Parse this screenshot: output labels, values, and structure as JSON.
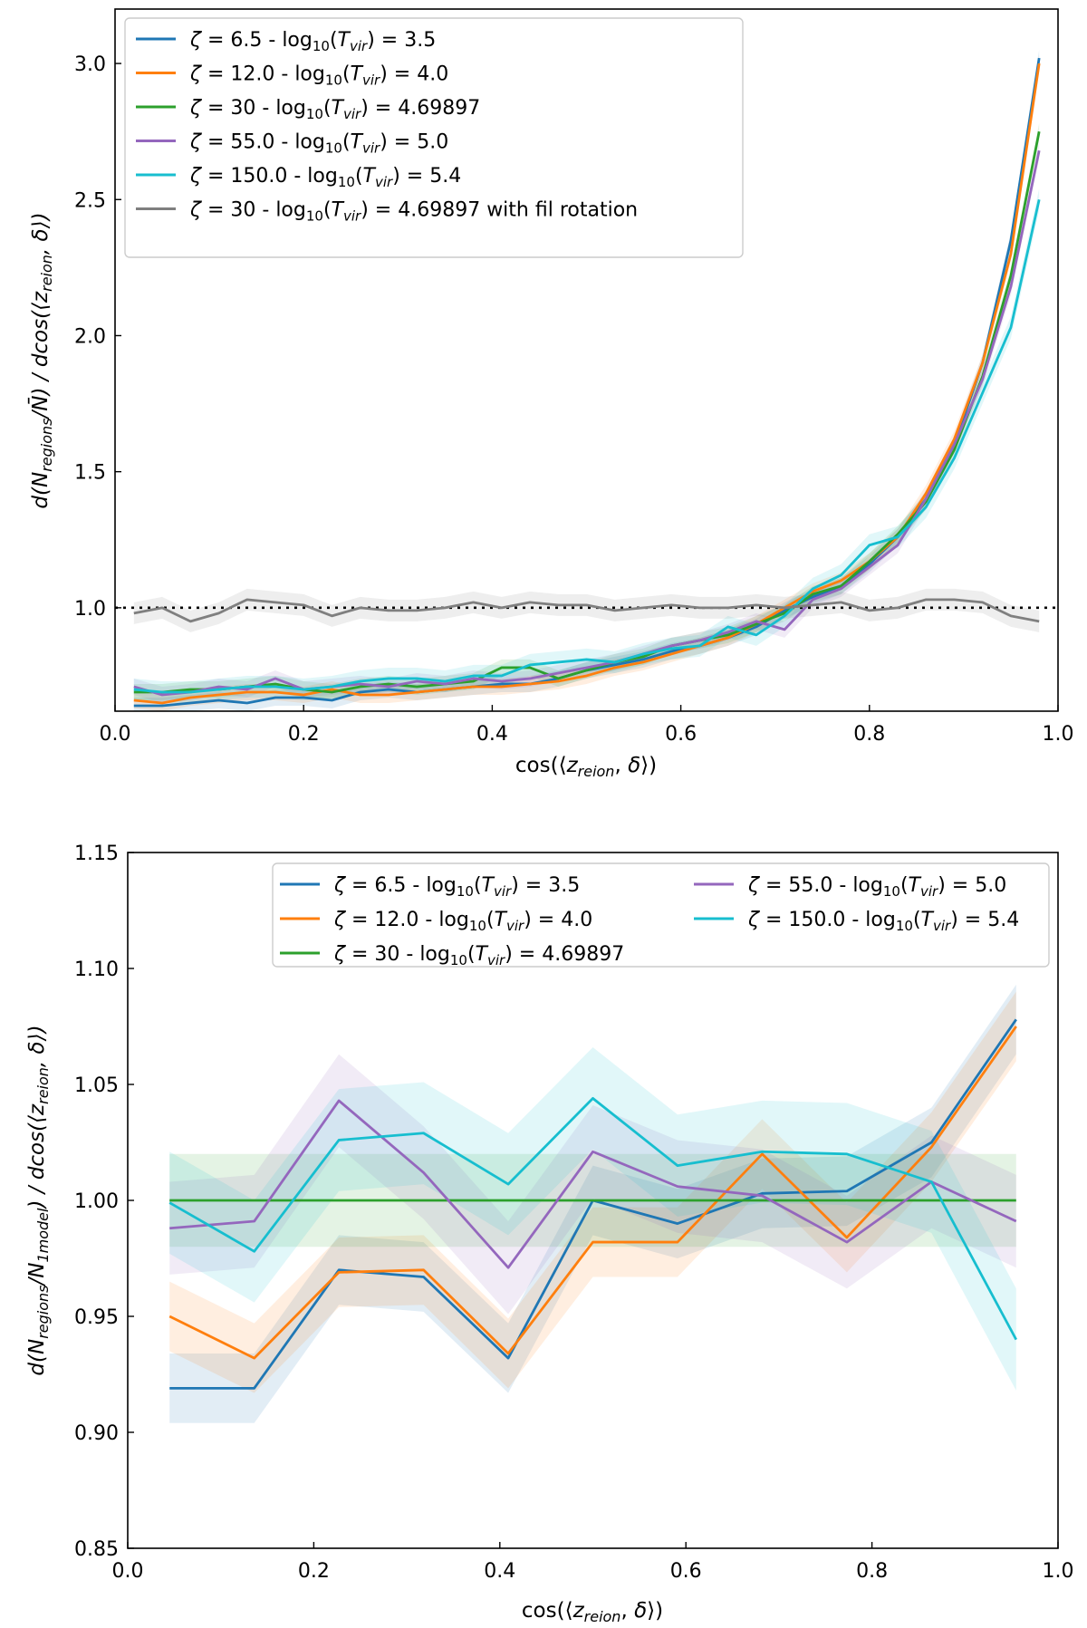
{
  "chart_data": [
    {
      "type": "line",
      "xlabel": "cos(⟨z_reion, δ⟩)",
      "ylabel": "d(N_regions/N̄) / dcos(⟨z_reion, δ⟩)",
      "xlim": [
        0.0,
        1.0
      ],
      "ylim": [
        0.62,
        3.2
      ],
      "xticks": [
        0.0,
        0.2,
        0.4,
        0.6,
        0.8,
        1.0
      ],
      "xtick_labels": [
        "0.0",
        "0.2",
        "0.4",
        "0.6",
        "0.8",
        "1.0"
      ],
      "yticks": [
        1.0,
        1.5,
        2.0,
        2.5,
        3.0
      ],
      "ytick_labels": [
        "1.0",
        "1.5",
        "2.0",
        "2.5",
        "3.0"
      ],
      "reference_line": 1.0,
      "legend_position": "top-left",
      "x": [
        0.02,
        0.05,
        0.08,
        0.11,
        0.14,
        0.17,
        0.2,
        0.23,
        0.26,
        0.29,
        0.32,
        0.35,
        0.38,
        0.41,
        0.44,
        0.47,
        0.5,
        0.53,
        0.56,
        0.59,
        0.62,
        0.65,
        0.68,
        0.71,
        0.74,
        0.77,
        0.8,
        0.83,
        0.86,
        0.89,
        0.92,
        0.95,
        0.98
      ],
      "series": [
        {
          "name": "ζ = 6.5 - log10(Tvir) = 3.5",
          "color": "#1f77b4",
          "band": 0.03,
          "values": [
            0.64,
            0.64,
            0.65,
            0.66,
            0.65,
            0.67,
            0.67,
            0.66,
            0.69,
            0.7,
            0.69,
            0.7,
            0.71,
            0.72,
            0.72,
            0.74,
            0.77,
            0.79,
            0.81,
            0.84,
            0.86,
            0.89,
            0.93,
            0.99,
            1.04,
            1.08,
            1.16,
            1.26,
            1.4,
            1.6,
            1.9,
            2.35,
            3.02
          ]
        },
        {
          "name": "ζ = 12.0 - log10(Tvir) = 4.0",
          "color": "#ff7f0e",
          "band": 0.03,
          "values": [
            0.66,
            0.65,
            0.67,
            0.68,
            0.69,
            0.69,
            0.68,
            0.7,
            0.68,
            0.68,
            0.69,
            0.7,
            0.71,
            0.71,
            0.72,
            0.73,
            0.75,
            0.78,
            0.8,
            0.83,
            0.86,
            0.89,
            0.94,
            1.0,
            1.06,
            1.1,
            1.17,
            1.26,
            1.42,
            1.62,
            1.9,
            2.3,
            3.0
          ]
        },
        {
          "name": "ζ = 30 - log10(Tvir) = 4.69897",
          "color": "#2ca02c",
          "band": 0.03,
          "values": [
            0.69,
            0.69,
            0.7,
            0.7,
            0.71,
            0.72,
            0.7,
            0.69,
            0.71,
            0.72,
            0.71,
            0.72,
            0.73,
            0.78,
            0.78,
            0.74,
            0.77,
            0.8,
            0.82,
            0.86,
            0.88,
            0.9,
            0.94,
            0.98,
            1.05,
            1.08,
            1.17,
            1.27,
            1.39,
            1.58,
            1.85,
            2.22,
            2.75
          ]
        },
        {
          "name": "ζ = 55.0 - log10(Tvir) = 5.0",
          "color": "#9467bd",
          "band": 0.03,
          "values": [
            0.71,
            0.68,
            0.69,
            0.71,
            0.7,
            0.74,
            0.7,
            0.71,
            0.72,
            0.71,
            0.73,
            0.72,
            0.74,
            0.73,
            0.74,
            0.76,
            0.78,
            0.8,
            0.83,
            0.86,
            0.88,
            0.91,
            0.95,
            0.92,
            1.03,
            1.07,
            1.15,
            1.23,
            1.4,
            1.6,
            1.84,
            2.18,
            2.68
          ]
        },
        {
          "name": "ζ = 150.0 - log10(Tvir) = 5.4",
          "color": "#17becf",
          "band": 0.04,
          "values": [
            0.7,
            0.69,
            0.69,
            0.7,
            0.71,
            0.71,
            0.7,
            0.71,
            0.73,
            0.74,
            0.74,
            0.73,
            0.75,
            0.75,
            0.79,
            0.8,
            0.81,
            0.8,
            0.83,
            0.85,
            0.86,
            0.93,
            0.9,
            0.97,
            1.07,
            1.12,
            1.23,
            1.26,
            1.37,
            1.55,
            1.79,
            2.03,
            2.5
          ]
        },
        {
          "name": "ζ = 30 - log10(Tvir) = 4.69897 with fil rotation",
          "color": "#7f7f7f",
          "band": 0.04,
          "values": [
            0.98,
            1.0,
            0.95,
            0.98,
            1.03,
            1.02,
            1.01,
            0.97,
            1.0,
            0.99,
            0.99,
            1.0,
            1.02,
            1.0,
            1.02,
            1.01,
            1.01,
            0.99,
            1.0,
            1.01,
            1.0,
            1.0,
            1.01,
            1.0,
            1.01,
            1.02,
            0.99,
            1.0,
            1.03,
            1.03,
            1.02,
            0.97,
            0.95
          ]
        }
      ]
    },
    {
      "type": "line",
      "xlabel": "cos(⟨z_reion, δ⟩)",
      "ylabel": "d(N_regions/N_1model) / dcos(⟨z_reion, δ⟩)",
      "xlim": [
        0.0,
        1.0
      ],
      "ylim": [
        0.85,
        1.15
      ],
      "xticks": [
        0.0,
        0.2,
        0.4,
        0.6,
        0.8,
        1.0
      ],
      "xtick_labels": [
        "0.0",
        "0.2",
        "0.4",
        "0.6",
        "0.8",
        "1.0"
      ],
      "yticks": [
        0.85,
        0.9,
        0.95,
        1.0,
        1.05,
        1.1,
        1.15
      ],
      "ytick_labels": [
        "0.85",
        "0.90",
        "0.95",
        "1.00",
        "1.05",
        "1.10",
        "1.15"
      ],
      "legend_position": "top-right",
      "x": [
        0.045,
        0.136,
        0.227,
        0.318,
        0.409,
        0.5,
        0.591,
        0.682,
        0.773,
        0.864,
        0.955
      ],
      "series": [
        {
          "name": "ζ = 6.5 - log10(Tvir) = 3.5",
          "color": "#1f77b4",
          "band": 0.015,
          "values": [
            0.919,
            0.919,
            0.97,
            0.967,
            0.932,
            1.0,
            0.99,
            1.003,
            1.004,
            1.025,
            1.078
          ]
        },
        {
          "name": "ζ = 12.0 - log10(Tvir) = 4.0",
          "color": "#ff7f0e",
          "band": 0.015,
          "values": [
            0.95,
            0.932,
            0.969,
            0.97,
            0.934,
            0.982,
            0.982,
            1.02,
            0.984,
            1.023,
            1.075
          ]
        },
        {
          "name": "ζ = 30 - log10(Tvir) = 4.69897",
          "color": "#2ca02c",
          "band": 0.02,
          "values": [
            1.0,
            1.0,
            1.0,
            1.0,
            1.0,
            1.0,
            1.0,
            1.0,
            1.0,
            1.0,
            1.0
          ]
        },
        {
          "name": "ζ = 55.0 - log10(Tvir) = 5.0",
          "color": "#9467bd",
          "band": 0.02,
          "values": [
            0.988,
            0.991,
            1.043,
            1.012,
            0.971,
            1.021,
            1.006,
            1.002,
            0.982,
            1.008,
            0.991
          ]
        },
        {
          "name": "ζ = 150.0 - log10(Tvir) = 5.4",
          "color": "#17becf",
          "band": 0.022,
          "values": [
            0.999,
            0.978,
            1.026,
            1.029,
            1.007,
            1.044,
            1.015,
            1.021,
            1.02,
            1.008,
            0.94
          ]
        }
      ]
    }
  ]
}
